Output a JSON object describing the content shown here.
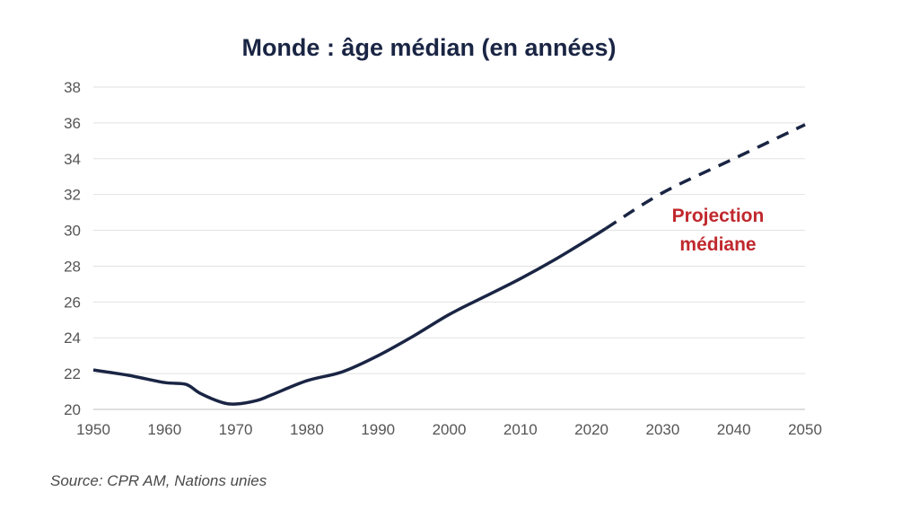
{
  "chart_data": {
    "type": "line",
    "title": "Monde : âge médian (en années)",
    "xlabel": "",
    "ylabel": "",
    "xlim": [
      1950,
      2050
    ],
    "ylim": [
      20,
      38
    ],
    "xticks": [
      1950,
      1960,
      1970,
      1980,
      1990,
      2000,
      2010,
      2020,
      2030,
      2040,
      2050
    ],
    "yticks": [
      20,
      22,
      24,
      26,
      28,
      30,
      32,
      34,
      36,
      38
    ],
    "grid": "horizontal",
    "series": [
      {
        "style": "solid",
        "color": "#1a2544",
        "x": [
          1950,
          1955,
          1960,
          1963,
          1965,
          1968,
          1970,
          1973,
          1975,
          1980,
          1985,
          1990,
          1995,
          2000,
          2005,
          2010,
          2015,
          2020,
          2022
        ],
        "y": [
          22.2,
          21.9,
          21.5,
          21.4,
          20.9,
          20.4,
          20.3,
          20.5,
          20.8,
          21.6,
          22.1,
          23.0,
          24.1,
          25.3,
          26.3,
          27.3,
          28.4,
          29.6,
          30.1
        ]
      },
      {
        "style": "dashed",
        "color": "#1a2544",
        "x": [
          2022,
          2030,
          2040,
          2050
        ],
        "y": [
          30.1,
          32.1,
          34.0,
          35.9
        ]
      }
    ],
    "annotations": [
      {
        "line1": "Projection",
        "line2": "médiane",
        "color": "#c0282d"
      }
    ]
  },
  "source": "Source: CPR AM, Nations unies"
}
